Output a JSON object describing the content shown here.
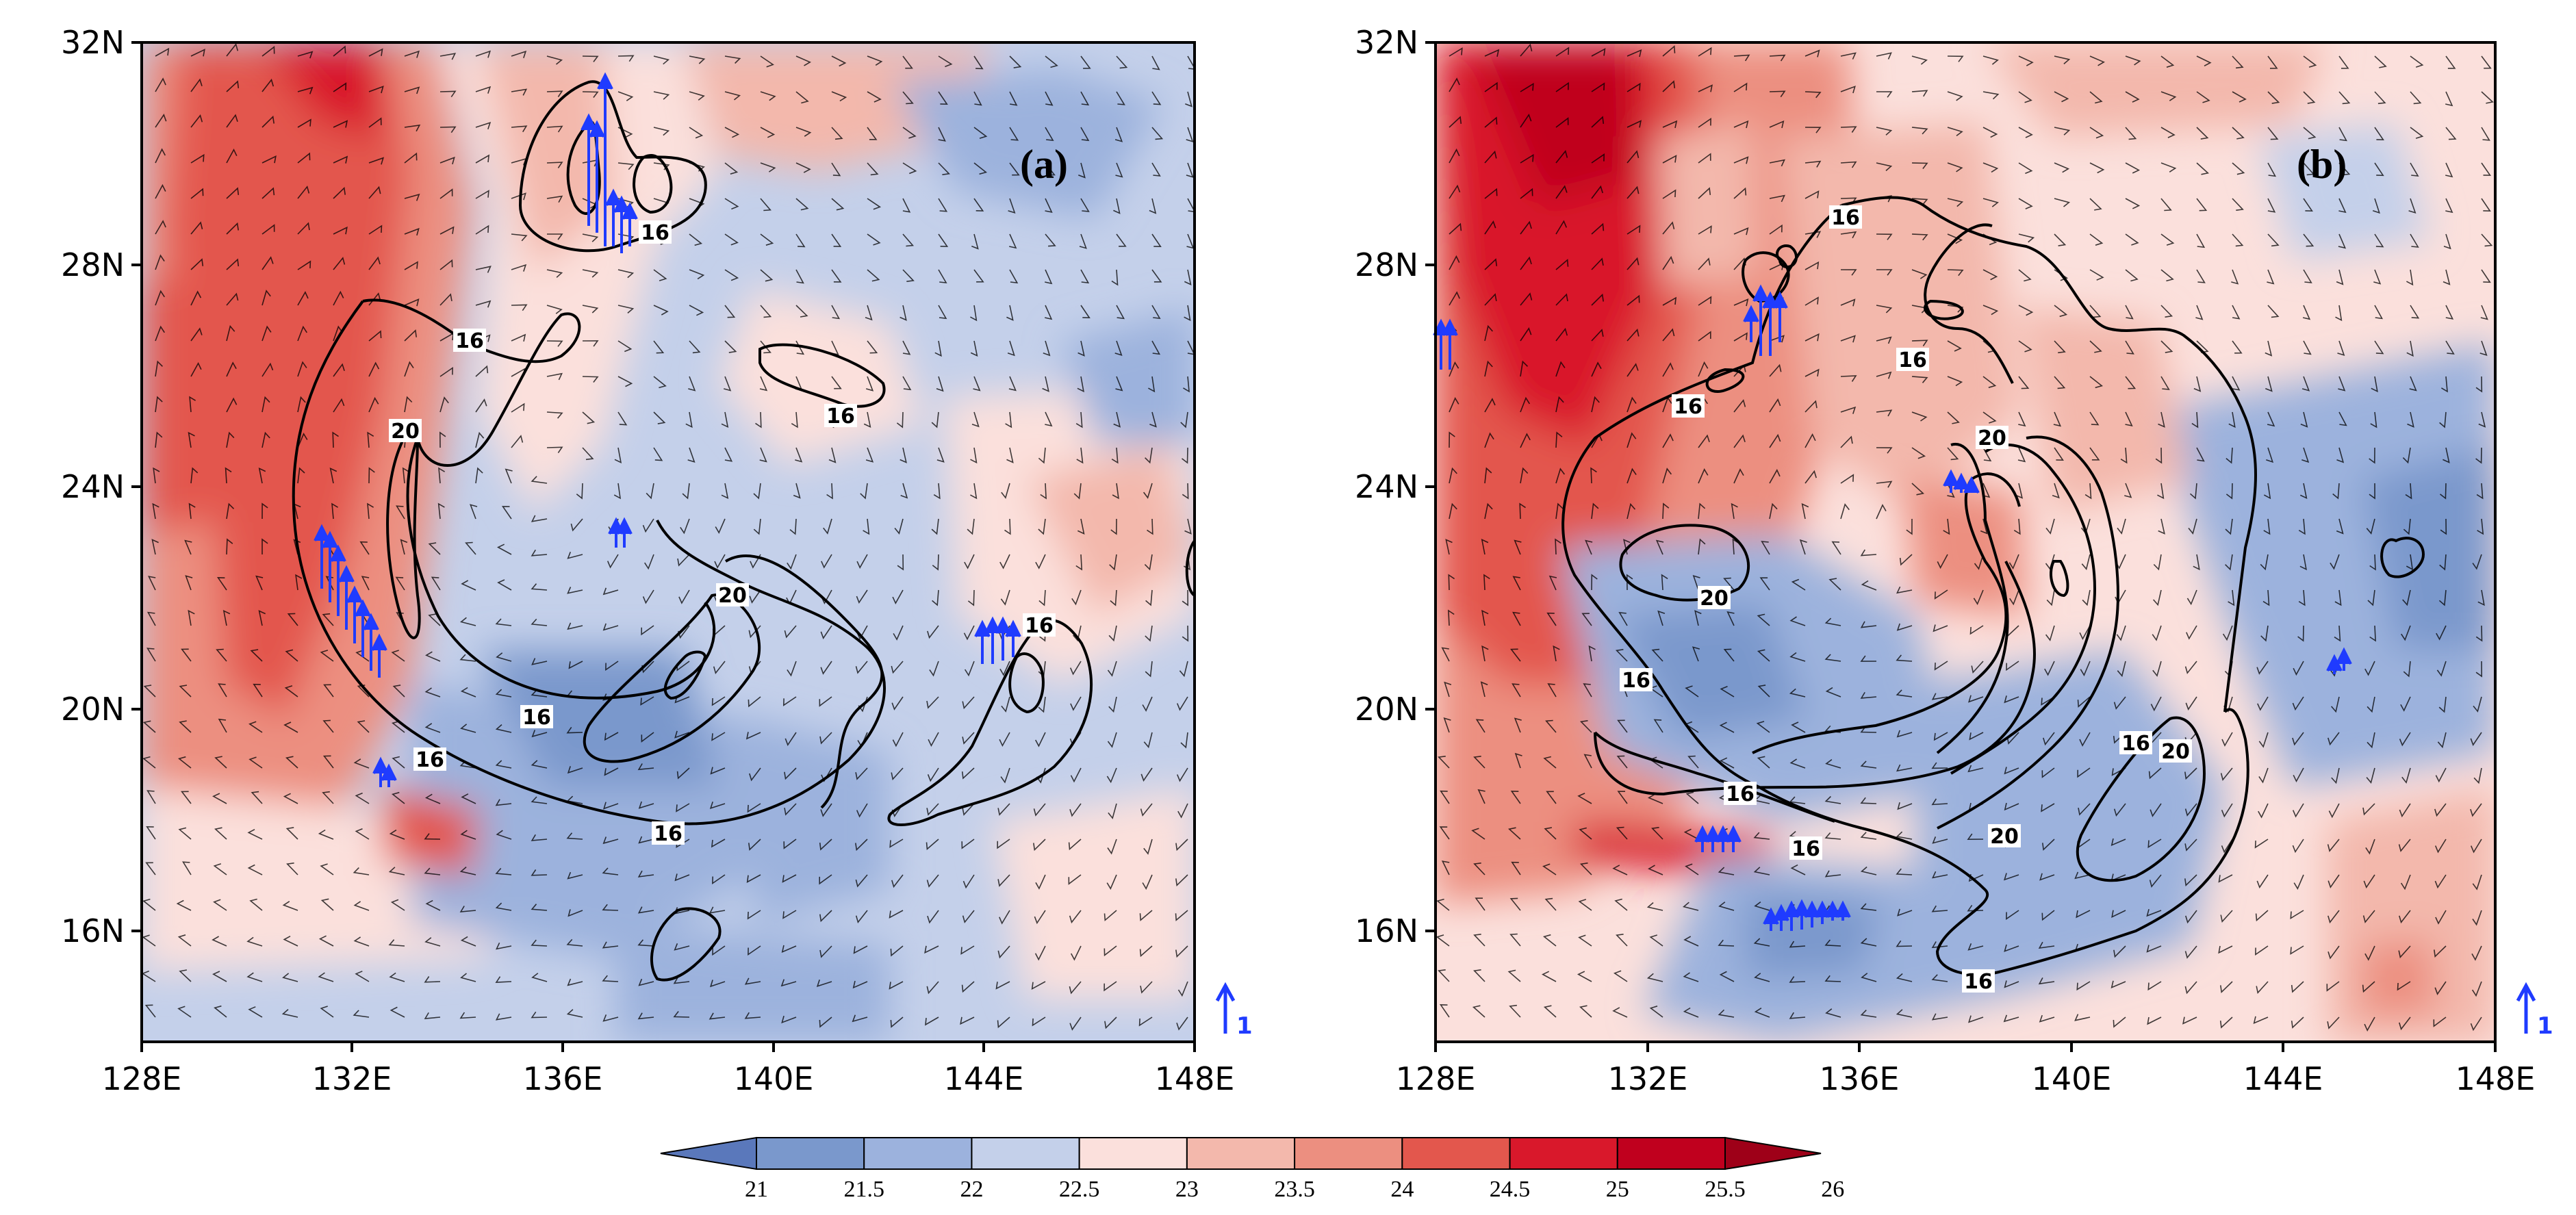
{
  "colors": {
    "bins": [
      "#5a78bb",
      "#7a98cc",
      "#9cb2dd",
      "#c4d0ea",
      "#fbe0dc",
      "#f3b8ac",
      "#ec8f80",
      "#e3574d",
      "#d9182b",
      "#c0001e",
      "#9e0018"
    ],
    "contour": "#000000",
    "vector": "#1f3bff",
    "barb": "#000000"
  },
  "panels": [
    {
      "label": "(a)",
      "x_ticks": [
        "128E",
        "132E",
        "136E",
        "140E",
        "144E",
        "148E"
      ],
      "y_ticks": [
        "32N",
        "28N",
        "24N",
        "20N",
        "16N"
      ],
      "contour_labels": [
        "16",
        "20",
        "16",
        "16",
        "20",
        "16",
        "16",
        "16",
        "16"
      ],
      "reference_vector_label": "1"
    },
    {
      "label": "(b)",
      "x_ticks": [
        "128E",
        "132E",
        "136E",
        "140E",
        "144E",
        "148E"
      ],
      "y_ticks": [
        "32N",
        "28N",
        "24N",
        "20N",
        "16N"
      ],
      "contour_labels": [
        "16",
        "16",
        "16",
        "20",
        "20",
        "16",
        "16",
        "20",
        "16",
        "16",
        "20",
        "16"
      ],
      "reference_vector_label": "1"
    }
  ],
  "colorbar": {
    "labels": [
      "21",
      "21.5",
      "22",
      "22.5",
      "23",
      "23.5",
      "24",
      "24.5",
      "25",
      "25.5",
      "26"
    ]
  }
}
